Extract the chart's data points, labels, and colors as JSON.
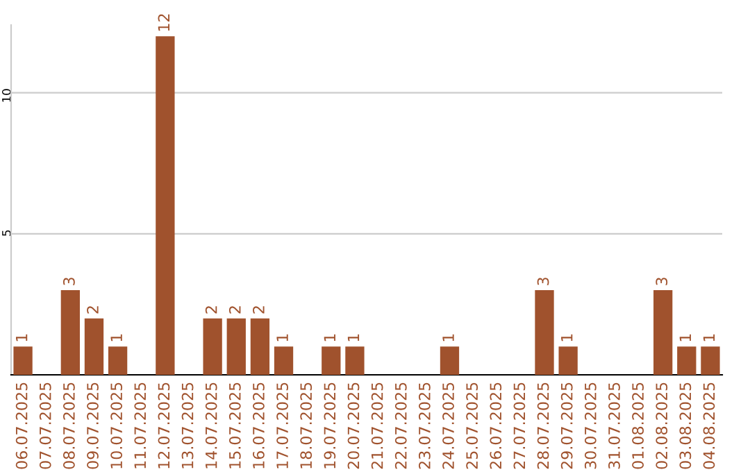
{
  "chart_data": {
    "type": "bar",
    "categories": [
      "06.07.2025",
      "07.07.2025",
      "08.07.2025",
      "09.07.2025",
      "10.07.2025",
      "11.07.2025",
      "12.07.2025",
      "13.07.2025",
      "14.07.2025",
      "15.07.2025",
      "16.07.2025",
      "17.07.2025",
      "18.07.2025",
      "19.07.2025",
      "20.07.2025",
      "21.07.2025",
      "22.07.2025",
      "23.07.2025",
      "24.07.2025",
      "25.07.2025",
      "26.07.2025",
      "27.07.2025",
      "28.07.2025",
      "29.07.2025",
      "30.07.2025",
      "31.07.2025",
      "01.08.2025",
      "02.08.2025",
      "03.08.2025",
      "04.08.2025"
    ],
    "values": [
      1,
      0,
      3,
      2,
      1,
      0,
      12,
      0,
      2,
      2,
      2,
      1,
      0,
      1,
      1,
      0,
      0,
      0,
      1,
      0,
      0,
      0,
      3,
      1,
      0,
      0,
      0,
      3,
      1,
      1
    ],
    "value_labels": [
      "1",
      null,
      "3",
      "2",
      "1",
      null,
      "12",
      null,
      "2",
      "2",
      "2",
      "1",
      null,
      "1",
      "1",
      null,
      null,
      null,
      "1",
      null,
      null,
      null,
      "3",
      "1",
      null,
      null,
      null,
      "3",
      "1",
      "1"
    ],
    "color": "#a0522d",
    "ylim": [
      0,
      12.4
    ],
    "yticks": [
      5,
      10
    ],
    "grid": "y"
  }
}
